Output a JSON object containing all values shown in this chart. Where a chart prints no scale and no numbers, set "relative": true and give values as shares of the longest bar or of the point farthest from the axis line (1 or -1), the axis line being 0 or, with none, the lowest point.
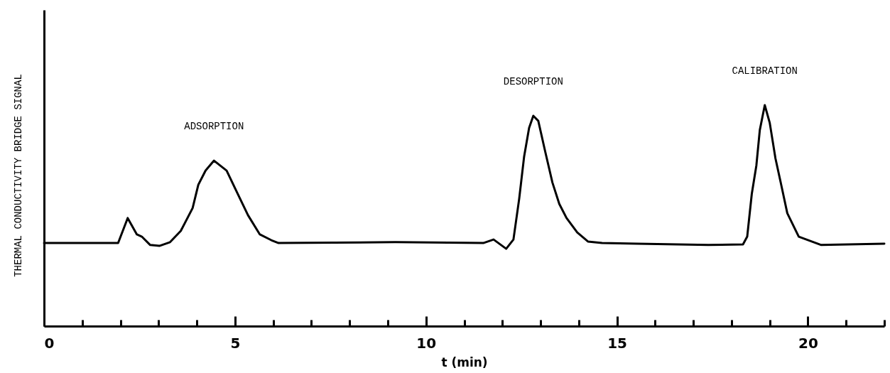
{
  "chart_data": {
    "type": "line",
    "xlabel": "t (min)",
    "ylabel": "THERMAL  CONDUCTIVITY  BRIDGE  SIGNAL",
    "relative": true,
    "xlim": [
      0,
      22
    ],
    "xticks": [
      0,
      {
        "value": 1,
        "label": null
      },
      {
        "value": 2,
        "label": null
      },
      {
        "value": 3,
        "label": null
      },
      {
        "value": 4,
        "label": null
      },
      5,
      {
        "value": 6,
        "label": null
      },
      {
        "value": 7,
        "label": null
      },
      {
        "value": 8,
        "label": null
      },
      {
        "value": 9,
        "label": null
      },
      10,
      {
        "value": 11,
        "label": null
      },
      {
        "value": 12,
        "label": null
      },
      {
        "value": 13,
        "label": null
      },
      {
        "value": 14,
        "label": null
      },
      15,
      {
        "value": 16,
        "label": null
      },
      {
        "value": 17,
        "label": null
      },
      {
        "value": 18,
        "label": null
      },
      {
        "value": 19,
        "label": null
      },
      20,
      {
        "value": 21,
        "label": null
      },
      {
        "value": 22,
        "label": null
      }
    ],
    "line_style": "solid",
    "series": [
      {
        "color": "#000000",
        "x": [
          0,
          1.94,
          2.19,
          2.43,
          2.56,
          2.78,
          3.02,
          3.3,
          3.58,
          3.89,
          4.04,
          4.23,
          4.45,
          4.78,
          5.02,
          5.34,
          5.65,
          5.95,
          6.14,
          9.2,
          11.5,
          11.77,
          12.1,
          12.29,
          12.44,
          12.57,
          12.7,
          12.81,
          12.94,
          13.12,
          13.31,
          13.49,
          13.68,
          13.96,
          14.24,
          14.61,
          15.53,
          17.39,
          18.3,
          18.41,
          18.53,
          18.65,
          18.74,
          18.87,
          19.0,
          19.15,
          19.3,
          19.46,
          19.76,
          20.35,
          22
        ],
        "values": [
          0.376,
          0.376,
          0.489,
          0.415,
          0.405,
          0.367,
          0.363,
          0.38,
          0.431,
          0.534,
          0.64,
          0.704,
          0.749,
          0.704,
          0.617,
          0.502,
          0.415,
          0.389,
          0.376,
          0.38,
          0.376,
          0.392,
          0.35,
          0.392,
          0.576,
          0.768,
          0.897,
          0.952,
          0.929,
          0.791,
          0.65,
          0.553,
          0.489,
          0.424,
          0.383,
          0.376,
          0.373,
          0.367,
          0.37,
          0.405,
          0.598,
          0.727,
          0.887,
          1.0,
          0.92,
          0.759,
          0.64,
          0.511,
          0.405,
          0.367,
          0.373
        ]
      }
    ],
    "annotations": [
      "ADSORPTION",
      "DESORPTION",
      "CALIBRATION"
    ]
  }
}
